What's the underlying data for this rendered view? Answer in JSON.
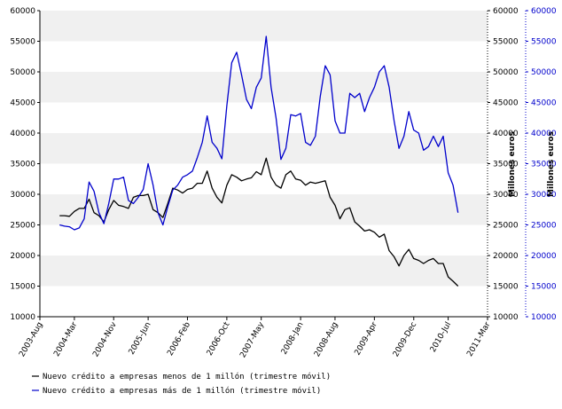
{
  "chart_data": {
    "type": "line",
    "title": "",
    "xlabel": "",
    "ylabel_right_black": "Millones euros",
    "ylabel_right_blue": "Millones euros",
    "ylim": [
      10000,
      60000
    ],
    "yticks": [
      10000,
      15000,
      20000,
      25000,
      30000,
      35000,
      40000,
      45000,
      50000,
      55000,
      60000
    ],
    "ytick_labels": [
      "10000",
      "15000",
      "20000",
      "25000",
      "30000",
      "35000",
      "40000",
      "45000",
      "50000",
      "55000",
      "60000"
    ],
    "xlim": [
      2003.583,
      2011.167
    ],
    "x_ticks": [
      {
        "x": 2003.583,
        "label": "2003-Aug"
      },
      {
        "x": 2004.167,
        "label": "2004-Mar"
      },
      {
        "x": 2004.833,
        "label": "2004-Nov"
      },
      {
        "x": 2005.417,
        "label": "2005-Jun"
      },
      {
        "x": 2006.083,
        "label": "2006-Feb"
      },
      {
        "x": 2006.75,
        "label": "2006-Oct"
      },
      {
        "x": 2007.333,
        "label": "2007-May"
      },
      {
        "x": 2008.0,
        "label": "2008-Jan"
      },
      {
        "x": 2008.583,
        "label": "2008-Aug"
      },
      {
        "x": 2009.25,
        "label": "2009-Apr"
      },
      {
        "x": 2009.917,
        "label": "2009-Dec"
      },
      {
        "x": 2010.5,
        "label": "2010-Jul"
      },
      {
        "x": 2011.167,
        "label": "2011-Mar"
      }
    ],
    "series": [
      {
        "name": "Nuevo crédito a empresas menos de 1 millón (trimestre móvil)",
        "color": "#000000",
        "x_start": 2003.917,
        "x_step": 0.08333,
        "values": [
          26500,
          26500,
          26400,
          27200,
          27700,
          27700,
          29200,
          27000,
          26500,
          25500,
          27500,
          29000,
          28200,
          28000,
          27700,
          29500,
          29800,
          29800,
          30000,
          27500,
          27000,
          26200,
          28500,
          31000,
          30700,
          30200,
          30800,
          31000,
          31800,
          31800,
          33800,
          31000,
          29500,
          28600,
          31500,
          33200,
          32800,
          32200,
          32500,
          32700,
          33700,
          33200,
          35900,
          32800,
          31500,
          31000,
          33200,
          33800,
          32500,
          32300,
          31500,
          32000,
          31800,
          32000,
          32200,
          29500,
          28200,
          26000,
          27500,
          27800,
          25500,
          24800,
          24000,
          24200,
          23800,
          23000,
          23500,
          20800,
          19800,
          18300,
          20000,
          21000,
          19500,
          19200,
          18700,
          19200,
          19500,
          18700,
          18700,
          16500,
          15800,
          15000
        ]
      },
      {
        "name": "Nuevo crédito a empresas más de 1 millón (trimestre móvil)",
        "color": "#0000cc",
        "x_start": 2003.917,
        "x_step": 0.08333,
        "values": [
          25000,
          24800,
          24700,
          24200,
          24500,
          26000,
          32000,
          30500,
          27000,
          25200,
          28500,
          32500,
          32500,
          32800,
          29000,
          28500,
          29500,
          30800,
          35000,
          31500,
          27000,
          25000,
          28000,
          30700,
          31500,
          32800,
          33200,
          33800,
          36000,
          38500,
          42800,
          38500,
          37500,
          35800,
          44500,
          51500,
          53200,
          49500,
          45500,
          44000,
          47500,
          49000,
          55800,
          47500,
          42500,
          35700,
          37500,
          43000,
          42800,
          43200,
          38500,
          38000,
          39500,
          46000,
          51000,
          49500,
          42000,
          40000,
          40000,
          46500,
          45800,
          46500,
          43500,
          45800,
          47500,
          50000,
          51000,
          47500,
          42000,
          37500,
          39500,
          43500,
          40500,
          40000,
          37200,
          37800,
          39500,
          37800,
          39500,
          33500,
          31500,
          27000
        ]
      }
    ],
    "grid": "horizontal bands",
    "legend_position": "bottom-left"
  }
}
